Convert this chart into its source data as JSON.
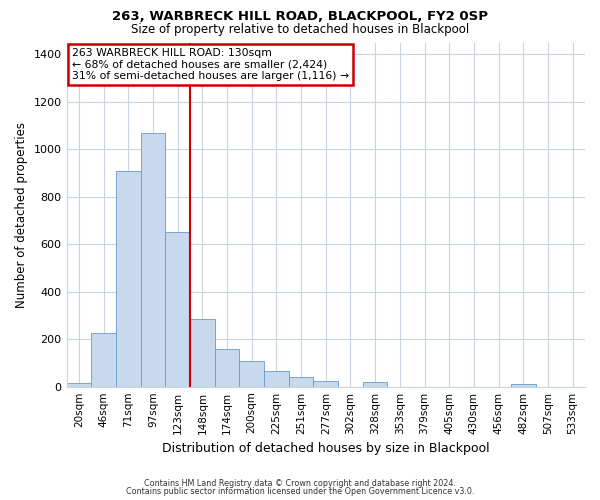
{
  "title1": "263, WARBRECK HILL ROAD, BLACKPOOL, FY2 0SP",
  "title2": "Size of property relative to detached houses in Blackpool",
  "xlabel": "Distribution of detached houses by size in Blackpool",
  "ylabel": "Number of detached properties",
  "bin_labels": [
    "20sqm",
    "46sqm",
    "71sqm",
    "97sqm",
    "123sqm",
    "148sqm",
    "174sqm",
    "200sqm",
    "225sqm",
    "251sqm",
    "277sqm",
    "302sqm",
    "328sqm",
    "353sqm",
    "379sqm",
    "405sqm",
    "430sqm",
    "456sqm",
    "482sqm",
    "507sqm",
    "533sqm"
  ],
  "bar_values": [
    15,
    228,
    910,
    1068,
    650,
    285,
    158,
    107,
    68,
    40,
    22,
    0,
    20,
    0,
    0,
    0,
    0,
    0,
    12,
    0,
    0
  ],
  "bar_color": "#c8d9ee",
  "bar_edge_color": "#6699cc",
  "vline_x_index": 4,
  "vline_color": "#cc0000",
  "annotation_line1": "263 WARBRECK HILL ROAD: 130sqm",
  "annotation_line2": "← 68% of detached houses are smaller (2,424)",
  "annotation_line3": "31% of semi-detached houses are larger (1,116) →",
  "annotation_box_color": "#ffffff",
  "annotation_box_edge": "#cc0000",
  "ylim": [
    0,
    1450
  ],
  "yticks": [
    0,
    200,
    400,
    600,
    800,
    1000,
    1200,
    1400
  ],
  "footer1": "Contains HM Land Registry data © Crown copyright and database right 2024.",
  "footer2": "Contains public sector information licensed under the Open Government Licence v3.0.",
  "background_color": "#ffffff",
  "grid_color": "#c8d4e0"
}
